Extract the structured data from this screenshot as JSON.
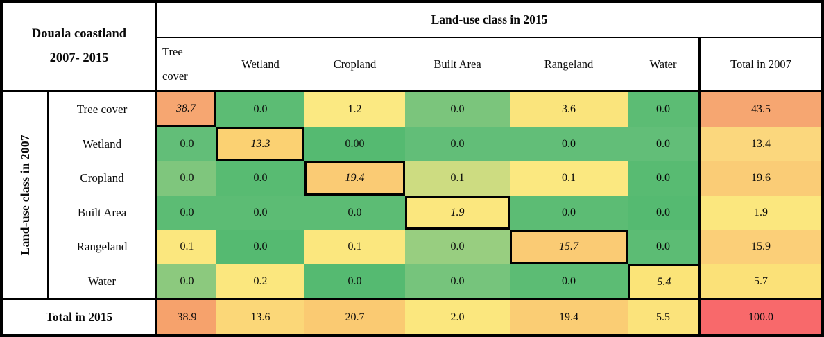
{
  "table": {
    "corner_line1": "Douala coastland",
    "corner_line2": "2007- 2015"
  },
  "chart_data": {
    "type": "heatmap",
    "title": "Douala coastland 2007- 2015",
    "column_axis_label": "Land-use class in 2015",
    "row_axis_label": "Land-use class in 2007",
    "columns": [
      "Tree cover",
      "Wetland",
      "Cropland",
      "Built Area",
      "Rangeland",
      "Water",
      "Total in 2007"
    ],
    "rows": [
      "Tree cover",
      "Wetland",
      "Cropland",
      "Built Area",
      "Rangeland",
      "Water",
      "Total in 2015"
    ],
    "values": [
      [
        "38.7",
        "0.0",
        "1.2",
        "0.0",
        "3.6",
        "0.0",
        "43.5"
      ],
      [
        "0.0",
        "13.3",
        "0.00",
        "0.0",
        "0.0",
        "0.0",
        "13.4"
      ],
      [
        "0.0",
        "0.0",
        "19.4",
        "0.1",
        "0.1",
        "0.0",
        "19.6"
      ],
      [
        "0.0",
        "0.0",
        "0.0",
        "1.9",
        "0.0",
        "0.0",
        "1.9"
      ],
      [
        "0.1",
        "0.0",
        "0.1",
        "0.0",
        "15.7",
        "0.0",
        "15.9"
      ],
      [
        "0.0",
        "0.2",
        "0.0",
        "0.0",
        "0.0",
        "5.4",
        "5.7"
      ],
      [
        "38.9",
        "13.6",
        "20.7",
        "2.0",
        "19.4",
        "5.5",
        "100.0"
      ]
    ],
    "cell_colors": [
      [
        "#F6A671",
        "#5CBC74",
        "#FBE982",
        "#7BC57C",
        "#FAE47C",
        "#5CBC74",
        "#F6A671"
      ],
      [
        "#62BE78",
        "#FBD172",
        "#55BA71",
        "#62BE78",
        "#62BE78",
        "#62BE78",
        "#FBD77D"
      ],
      [
        "#7FC67D",
        "#58BB72",
        "#FACB74",
        "#CDDC81",
        "#FBE880",
        "#58BB72",
        "#FACC76"
      ],
      [
        "#5CBC74",
        "#5CBC74",
        "#5CBC74",
        "#FBE77E",
        "#5CBC74",
        "#55BA71",
        "#FBE77E"
      ],
      [
        "#FBE77E",
        "#55BA71",
        "#FBE77E",
        "#98CE80",
        "#FACB74",
        "#5CBC74",
        "#FBCF78"
      ],
      [
        "#8CC97E",
        "#FBE77E",
        "#55BA71",
        "#76C47C",
        "#5CBC74",
        "#FBE478",
        "#FBE178"
      ],
      [
        "#F6A26C",
        "#FBD778",
        "#FACA72",
        "#FBE77E",
        "#FACD74",
        "#FBE37B",
        "#F8696B"
      ]
    ],
    "notes": "diagonal persistence cells are italic with thick black outline",
    "legend_position": "none",
    "grid": false
  }
}
